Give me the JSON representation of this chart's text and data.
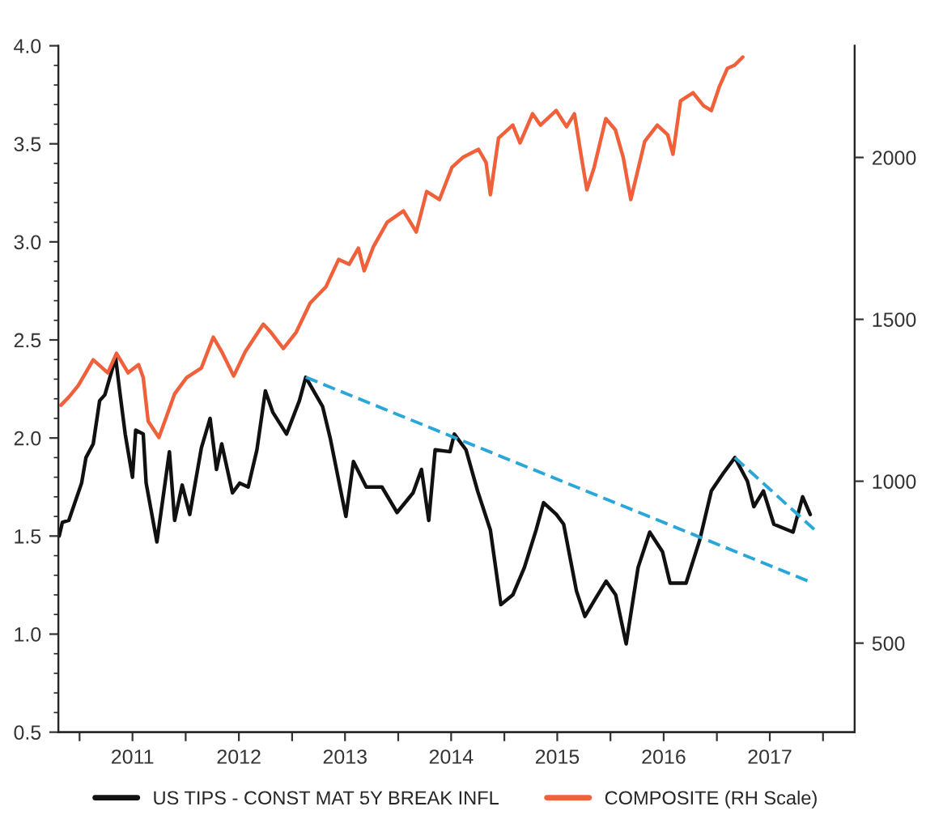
{
  "chart_data": {
    "type": "line",
    "xlim": [
      "2010-10-20",
      "2018-04-20"
    ],
    "xticks": [
      {
        "value": "2011-01-01",
        "label": null
      },
      {
        "value": "2011-07-02",
        "label": "2011"
      },
      {
        "value": "2012-01-01",
        "label": null
      },
      {
        "value": "2012-07-02",
        "label": "2012"
      },
      {
        "value": "2013-01-01",
        "label": null
      },
      {
        "value": "2013-07-02",
        "label": "2013"
      },
      {
        "value": "2014-01-01",
        "label": null
      },
      {
        "value": "2014-07-02",
        "label": "2014"
      },
      {
        "value": "2015-01-01",
        "label": null
      },
      {
        "value": "2015-07-02",
        "label": "2015"
      },
      {
        "value": "2016-01-01",
        "label": null
      },
      {
        "value": "2016-07-02",
        "label": "2016"
      },
      {
        "value": "2017-01-01",
        "label": null
      },
      {
        "value": "2017-07-02",
        "label": "2017"
      },
      {
        "value": "2018-01-01",
        "label": null
      }
    ],
    "ylim": [
      0.5,
      4.0
    ],
    "yticks": [
      {
        "value": 0.5,
        "label": "0.5"
      },
      {
        "value": 1.0,
        "label": "1.0"
      },
      {
        "value": 1.5,
        "label": "1.5"
      },
      {
        "value": 2.0,
        "label": "2.0"
      },
      {
        "value": 2.5,
        "label": "2.5"
      },
      {
        "value": 3.0,
        "label": "3.0"
      },
      {
        "value": 3.5,
        "label": "3.5"
      },
      {
        "value": 4.0,
        "label": "4.0"
      }
    ],
    "y2lim": [
      225,
      2345
    ],
    "y2ticks": [
      500,
      1000,
      1500,
      2000
    ],
    "grid": false,
    "legend": "bottom",
    "series": [
      {
        "name": "US TIPS - CONST MAT 5Y BREAK INFL",
        "color": "#111111",
        "x": [
          "2010-10-23",
          "2010-11-03",
          "2010-11-25",
          "2011-01-08",
          "2011-01-23",
          "2011-02-17",
          "2011-03-11",
          "2011-03-29",
          "2011-05-05",
          "2011-05-19",
          "2011-06-07",
          "2011-07-02",
          "2011-07-13",
          "2011-08-08",
          "2011-08-18",
          "2011-09-24",
          "2011-11-06",
          "2011-11-24",
          "2011-12-20",
          "2012-01-15",
          "2012-02-24",
          "2012-03-25",
          "2012-04-16",
          "2012-05-04",
          "2012-06-10",
          "2012-07-05",
          "2012-08-03",
          "2012-09-02",
          "2012-10-01",
          "2012-10-27",
          "2012-12-13",
          "2013-01-26",
          "2013-02-17",
          "2013-04-16",
          "2013-05-12",
          "2013-07-05",
          "2013-07-31",
          "2013-09-13",
          "2013-11-06",
          "2013-12-28",
          "2014-02-21",
          "2014-03-22",
          "2014-04-16",
          "2014-05-08",
          "2014-06-28",
          "2014-07-13",
          "2014-08-22",
          "2014-10-01",
          "2014-11-14",
          "2014-12-20",
          "2015-01-30",
          "2015-03-11",
          "2015-04-20",
          "2015-05-16",
          "2015-06-29",
          "2015-07-24",
          "2015-09-06",
          "2015-10-05",
          "2015-11-10",
          "2015-12-17",
          "2016-01-19",
          "2016-02-24",
          "2016-04-05",
          "2016-05-15",
          "2016-06-28",
          "2016-07-24",
          "2016-09-17",
          "2016-11-03",
          "2016-12-13",
          "2017-01-23",
          "2017-03-04",
          "2017-04-16",
          "2017-05-08",
          "2017-06-10",
          "2017-07-16",
          "2017-09-20",
          "2017-10-23",
          "2017-11-18"
        ],
        "values": [
          1.5,
          1.57,
          1.58,
          1.77,
          1.9,
          1.97,
          2.19,
          2.22,
          2.41,
          2.24,
          2.02,
          1.8,
          2.04,
          2.02,
          1.77,
          1.47,
          1.93,
          1.58,
          1.76,
          1.61,
          1.95,
          2.1,
          1.84,
          1.97,
          1.72,
          1.77,
          1.75,
          1.94,
          2.24,
          2.13,
          2.02,
          2.19,
          2.31,
          2.16,
          2.0,
          1.6,
          1.88,
          1.75,
          1.75,
          1.62,
          1.72,
          1.84,
          1.58,
          1.94,
          1.93,
          2.02,
          1.94,
          1.73,
          1.53,
          1.15,
          1.2,
          1.34,
          1.53,
          1.67,
          1.61,
          1.56,
          1.22,
          1.09,
          1.18,
          1.27,
          1.2,
          0.95,
          1.34,
          1.52,
          1.42,
          1.26,
          1.26,
          1.48,
          1.73,
          1.82,
          1.9,
          1.78,
          1.65,
          1.73,
          1.56,
          1.52,
          1.7,
          1.61
        ]
      },
      {
        "name": "COMPOSITE (RH Scale)",
        "color": "#f0603a",
        "axis": "y2",
        "x": [
          "2010-10-29",
          "2010-11-25",
          "2010-12-27",
          "2011-02-17",
          "2011-04-08",
          "2011-05-08",
          "2011-06-17",
          "2011-07-23",
          "2011-08-08",
          "2011-08-25",
          "2011-10-01",
          "2011-11-24",
          "2012-01-04",
          "2012-02-24",
          "2012-04-05",
          "2012-05-04",
          "2012-06-14",
          "2012-07-24",
          "2012-09-24",
          "2012-10-20",
          "2012-12-02",
          "2013-01-15",
          "2013-03-04",
          "2013-04-27",
          "2013-06-10",
          "2013-07-16",
          "2013-08-17",
          "2013-09-06",
          "2013-10-08",
          "2013-11-24",
          "2014-01-19",
          "2014-03-04",
          "2014-04-09",
          "2014-05-23",
          "2014-07-05",
          "2014-08-11",
          "2014-10-04",
          "2014-10-30",
          "2014-11-14",
          "2014-12-12",
          "2015-01-30",
          "2015-02-24",
          "2015-04-08",
          "2015-05-05",
          "2015-06-28",
          "2015-08-03",
          "2015-08-30",
          "2015-09-26",
          "2015-10-12",
          "2015-11-06",
          "2015-12-16",
          "2016-01-18",
          "2016-02-14",
          "2016-03-11",
          "2016-04-28",
          "2016-06-10",
          "2016-07-16",
          "2016-08-03",
          "2016-08-29",
          "2016-10-11",
          "2016-11-16",
          "2016-12-13",
          "2017-01-10",
          "2017-02-06",
          "2017-03-03",
          "2017-03-31"
        ],
        "values": [
          1235,
          1260,
          1295,
          1375,
          1335,
          1395,
          1335,
          1360,
          1320,
          1185,
          1135,
          1270,
          1320,
          1350,
          1445,
          1400,
          1325,
          1400,
          1485,
          1460,
          1410,
          1460,
          1550,
          1600,
          1685,
          1670,
          1720,
          1650,
          1725,
          1800,
          1835,
          1770,
          1895,
          1870,
          1970,
          2000,
          2025,
          1985,
          1885,
          2060,
          2100,
          2045,
          2135,
          2100,
          2145,
          2095,
          2135,
          1985,
          1900,
          1970,
          2120,
          2085,
          2000,
          1870,
          2050,
          2100,
          2070,
          2010,
          2175,
          2200,
          2160,
          2145,
          2220,
          2275,
          2285,
          2310
        ]
      },
      {
        "color": "#2aa7d8",
        "line_style": "dashed",
        "x": [
          "2013-02-17",
          "2017-11-28"
        ],
        "values": [
          2.31,
          1.26
        ]
      },
      {
        "color": "#2aa7d8",
        "line_style": "dashed",
        "x": [
          "2017-03-04",
          "2017-12-12"
        ],
        "values": [
          1.9,
          1.52
        ]
      }
    ]
  }
}
